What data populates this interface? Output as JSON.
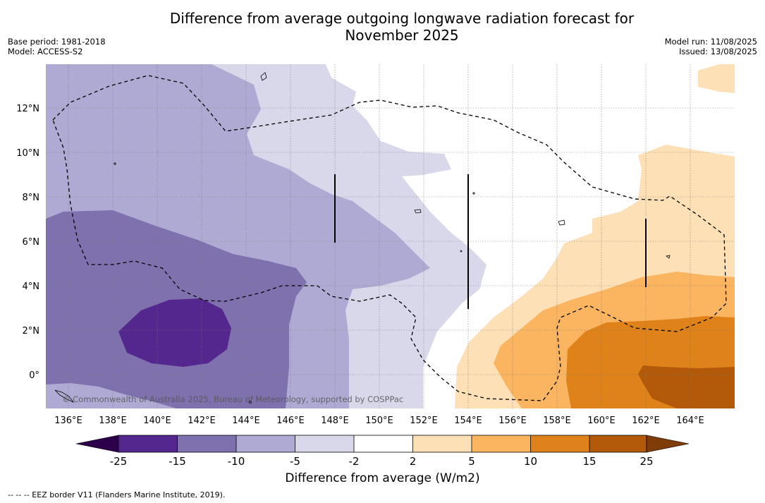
{
  "title_line1": "Difference from average outgoing longwave radiation forecast for",
  "title_line2": "November 2025",
  "base_period": "Base period: 1981-2018",
  "model": "Model: ACCESS-S2",
  "model_run": "Model run: 11/08/2025",
  "issued": "Issued: 13/08/2025",
  "copyright": "© Commonwealth of Australia 2025, Bureau of Meteorology, supported by COSPPac",
  "lon_labels": [
    "136°E",
    "138°E",
    "140°E",
    "142°E",
    "144°E",
    "146°E",
    "148°E",
    "150°E",
    "152°E",
    "154°E",
    "156°E",
    "158°E",
    "160°E",
    "162°E",
    "164°E"
  ],
  "lat_labels": [
    "12°N",
    "10°N",
    "8°N",
    "6°N",
    "4°N",
    "2°N",
    "0°"
  ],
  "colorbar": {
    "title": "Difference from average (W/m2)",
    "ticks": [
      "-25",
      "-15",
      "-10",
      "-5",
      "-2",
      "2",
      "5",
      "10",
      "15",
      "25"
    ],
    "colors": [
      "#54278f",
      "#7e71ad",
      "#aeaad3",
      "#d9d8ea",
      "#ffffff",
      "#fde0b6",
      "#fbb561",
      "#e0821a",
      "#b25a09"
    ],
    "extend_low": "#2d004b",
    "extend_high": "#7f3b08"
  },
  "footnote": "--  --  -- EEZ border V11 (Flanders Marine Institute, 2019)."
}
